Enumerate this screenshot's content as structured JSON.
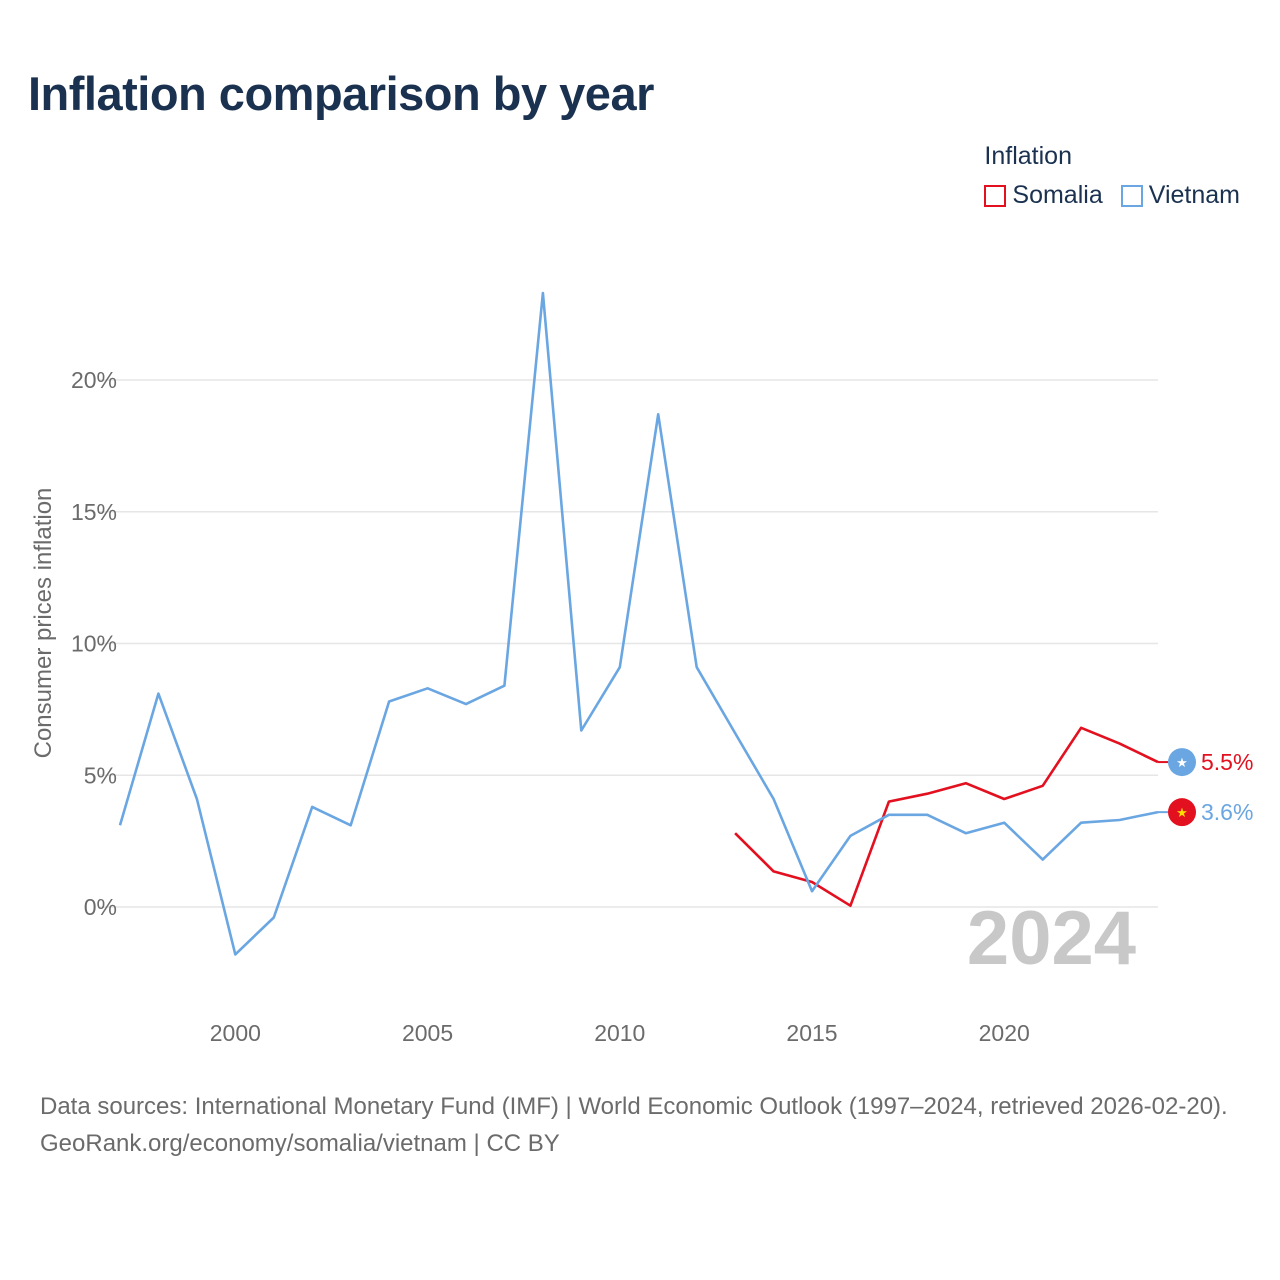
{
  "title": "Inflation comparison by year",
  "legend": {
    "title": "Inflation",
    "items": [
      {
        "label": "Somalia",
        "color": "#e3101f"
      },
      {
        "label": "Vietnam",
        "color": "#6aa6e2"
      }
    ]
  },
  "year_label": "2024",
  "source_line1": "Data sources: International Monetary Fund (IMF) | World Economic Outlook (1997–2024, retrieved 2026-02-20).",
  "source_line2": "GeoRank.org/economy/somalia/vietnam | CC BY",
  "chart_data": {
    "type": "line",
    "title": "Inflation comparison by year",
    "xlabel": "",
    "ylabel": "Consumer prices inflation",
    "xlim": [
      1997,
      2024
    ],
    "ylim": [
      -3.5,
      24
    ],
    "x_ticks": [
      2000,
      2005,
      2010,
      2015,
      2020
    ],
    "y_ticks": [
      0,
      5,
      10,
      15,
      20
    ],
    "y_tick_labels": [
      "0%",
      "5%",
      "10%",
      "15%",
      "20%"
    ],
    "grid": true,
    "legend_position": "top-right",
    "series": [
      {
        "name": "Somalia",
        "color": "#e3101f",
        "end_label": "5.5%",
        "x": [
          2013,
          2014,
          2015,
          2016,
          2017,
          2018,
          2019,
          2020,
          2021,
          2022,
          2023,
          2024
        ],
        "values": [
          2.8,
          1.35,
          0.95,
          0.05,
          4.0,
          4.3,
          4.7,
          4.1,
          4.6,
          6.8,
          6.2,
          5.5
        ]
      },
      {
        "name": "Vietnam",
        "color": "#6aa6e2",
        "end_label": "3.6%",
        "x": [
          1997,
          1998,
          1999,
          2000,
          2001,
          2002,
          2003,
          2004,
          2005,
          2006,
          2007,
          2008,
          2009,
          2010,
          2011,
          2012,
          2013,
          2014,
          2015,
          2016,
          2017,
          2018,
          2019,
          2020,
          2021,
          2022,
          2023,
          2024
        ],
        "values": [
          3.1,
          8.1,
          4.1,
          -1.8,
          -0.4,
          3.8,
          3.1,
          7.8,
          8.3,
          7.7,
          8.4,
          23.3,
          6.7,
          9.1,
          18.7,
          9.1,
          6.6,
          4.1,
          0.6,
          2.7,
          3.5,
          3.5,
          2.8,
          3.2,
          1.8,
          3.2,
          3.3,
          3.6
        ]
      }
    ]
  }
}
